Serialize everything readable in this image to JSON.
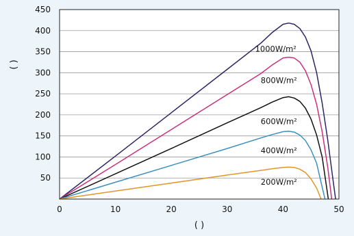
{
  "chart_data": {
    "type": "line",
    "title": "",
    "xlabel": "( )",
    "ylabel": "( )",
    "xlim": [
      0,
      50
    ],
    "ylim": [
      0,
      450
    ],
    "xticks": [
      0,
      10,
      20,
      30,
      40,
      50
    ],
    "yticks": [
      50,
      100,
      150,
      200,
      250,
      300,
      350,
      400,
      450
    ],
    "grid": "horizontal",
    "legend": "none",
    "series": [
      {
        "name": "1000W/m²",
        "color": "#2a2466",
        "x": [
          0,
          10,
          20,
          30,
          36,
          38,
          40,
          41,
          42,
          43,
          44,
          45,
          46,
          47,
          48,
          49,
          49.4
        ],
        "y": [
          0,
          102,
          205,
          308,
          370,
          395,
          415,
          418,
          415,
          405,
          385,
          352,
          300,
          228,
          140,
          40,
          0
        ]
      },
      {
        "name": "800W/m²",
        "color": "#cc2f78",
        "x": [
          0,
          10,
          20,
          30,
          36,
          38,
          40,
          41,
          42,
          43,
          44,
          45,
          46,
          47,
          48,
          48.7
        ],
        "y": [
          0,
          82,
          165,
          248,
          298,
          318,
          335,
          337,
          335,
          325,
          305,
          272,
          225,
          160,
          75,
          0
        ]
      },
      {
        "name": "600W/m²",
        "color": "#111111",
        "x": [
          0,
          10,
          20,
          30,
          36,
          38,
          40,
          41,
          42,
          43,
          44,
          45,
          46,
          47,
          48.1
        ],
        "y": [
          0,
          60,
          120,
          181,
          217,
          230,
          241,
          243,
          240,
          232,
          216,
          190,
          152,
          100,
          0
        ]
      },
      {
        "name": "400W/m²",
        "color": "#3b8fc0",
        "x": [
          0,
          10,
          20,
          30,
          36,
          38,
          40,
          41,
          42,
          43,
          44,
          45,
          46,
          47.5
        ],
        "y": [
          0,
          40,
          80,
          120,
          145,
          153,
          160,
          161,
          159,
          152,
          139,
          117,
          85,
          0
        ]
      },
      {
        "name": "200W/m²",
        "color": "#e0952a",
        "x": [
          0,
          10,
          20,
          30,
          36,
          38,
          40,
          41,
          42,
          43,
          44,
          45,
          46,
          46.8
        ],
        "y": [
          0,
          19,
          38,
          57,
          68,
          72,
          75,
          76,
          75,
          71,
          63,
          48,
          26,
          0
        ]
      }
    ]
  }
}
